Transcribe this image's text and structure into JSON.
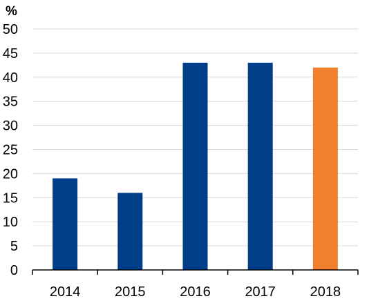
{
  "chart_data": {
    "type": "bar",
    "unit_label": "%",
    "categories": [
      "2014",
      "2015",
      "2016",
      "2017",
      "2018"
    ],
    "values": [
      19,
      16,
      43,
      43,
      42
    ],
    "bar_colors": [
      "#003f87",
      "#003f87",
      "#003f87",
      "#003f87",
      "#f07f2e"
    ],
    "ylim": [
      0,
      50
    ],
    "yticks": [
      0,
      5,
      10,
      15,
      20,
      25,
      30,
      35,
      40,
      45,
      50
    ],
    "grid": true,
    "grid_color": "#d9d9d9",
    "axis_color": "#000000",
    "legend": "none"
  }
}
